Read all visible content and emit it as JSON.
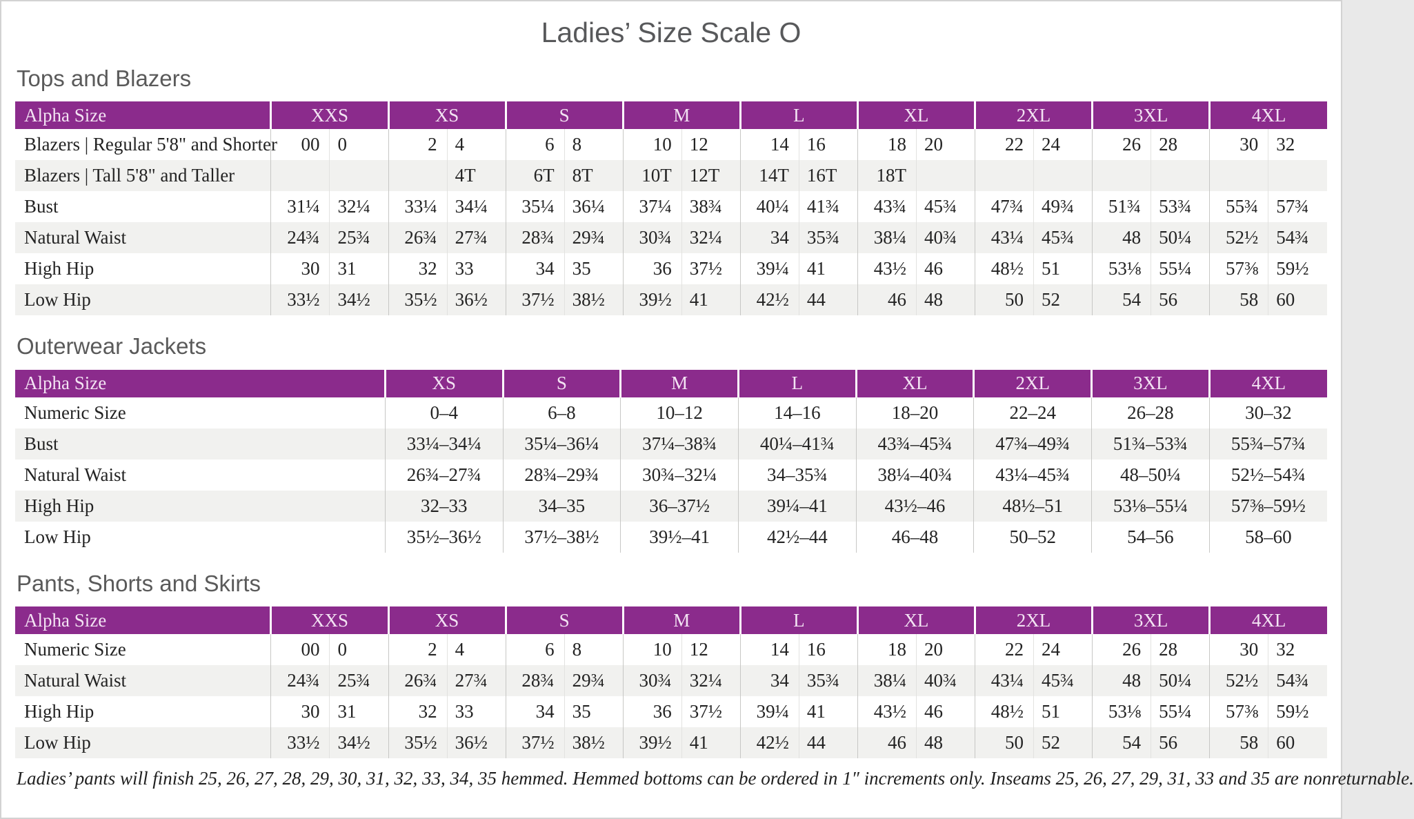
{
  "page": {
    "title": "Ladies’ Size Scale O",
    "footnote": "Ladies’ pants will finish 25, 26, 27, 28, 29, 30, 31, 32, 33, 34, 35 hemmed. Hemmed bottoms can be ordered in 1″ increments only. Inseams 25, 26, 27, 29, 31, 33 and 35 are nonreturnable."
  },
  "colors": {
    "header_purple": "#8B2B8C",
    "header_text": "#F3E3F3",
    "stripe_gray": "#F1F1EF",
    "heading_gray": "#5A5A5A",
    "body_text": "#232323"
  },
  "tables": [
    {
      "section": "Tops and Blazers",
      "label_header": "Alpha Size",
      "split_columns": true,
      "columns": [
        "XXS",
        "XS",
        "S",
        "M",
        "L",
        "XL",
        "2XL",
        "3XL",
        "4XL"
      ],
      "rows": [
        {
          "label": "Blazers  |  Regular 5'8\" and Shorter",
          "values": [
            [
              "00",
              "0"
            ],
            [
              "2",
              "4"
            ],
            [
              "6",
              "8"
            ],
            [
              "10",
              "12"
            ],
            [
              "14",
              "16"
            ],
            [
              "18",
              "20"
            ],
            [
              "22",
              "24"
            ],
            [
              "26",
              "28"
            ],
            [
              "30",
              "32"
            ]
          ]
        },
        {
          "label": "Blazers  |  Tall 5'8\" and Taller",
          "values": [
            [
              "",
              ""
            ],
            [
              "",
              "4T"
            ],
            [
              "6T",
              "8T"
            ],
            [
              "10T",
              "12T"
            ],
            [
              "14T",
              "16T"
            ],
            [
              "18T",
              ""
            ],
            [
              "",
              ""
            ],
            [
              "",
              ""
            ],
            [
              "",
              ""
            ]
          ]
        },
        {
          "label": "Bust",
          "values": [
            [
              "31¼",
              "32¼"
            ],
            [
              "33¼",
              "34¼"
            ],
            [
              "35¼",
              "36¼"
            ],
            [
              "37¼",
              "38¾"
            ],
            [
              "40¼",
              "41¾"
            ],
            [
              "43¾",
              "45¾"
            ],
            [
              "47¾",
              "49¾"
            ],
            [
              "51¾",
              "53¾"
            ],
            [
              "55¾",
              "57¾"
            ]
          ]
        },
        {
          "label": "Natural Waist",
          "values": [
            [
              "24¾",
              "25¾"
            ],
            [
              "26¾",
              "27¾"
            ],
            [
              "28¾",
              "29¾"
            ],
            [
              "30¾",
              "32¼"
            ],
            [
              "34",
              "35¾"
            ],
            [
              "38¼",
              "40¾"
            ],
            [
              "43¼",
              "45¾"
            ],
            [
              "48",
              "50¼"
            ],
            [
              "52½",
              "54¾"
            ]
          ]
        },
        {
          "label": "High Hip",
          "values": [
            [
              "30",
              "31"
            ],
            [
              "32",
              "33"
            ],
            [
              "34",
              "35"
            ],
            [
              "36",
              "37½"
            ],
            [
              "39¼",
              "41"
            ],
            [
              "43½",
              "46"
            ],
            [
              "48½",
              "51"
            ],
            [
              "53⅛",
              "55¼"
            ],
            [
              "57⅜",
              "59½"
            ]
          ]
        },
        {
          "label": "Low Hip",
          "values": [
            [
              "33½",
              "34½"
            ],
            [
              "35½",
              "36½"
            ],
            [
              "37½",
              "38½"
            ],
            [
              "39½",
              "41"
            ],
            [
              "42½",
              "44"
            ],
            [
              "46",
              "48"
            ],
            [
              "50",
              "52"
            ],
            [
              "54",
              "56"
            ],
            [
              "58",
              "60"
            ]
          ]
        }
      ]
    },
    {
      "section": "Outerwear Jackets",
      "label_header": "Alpha Size",
      "split_columns": false,
      "columns": [
        "XS",
        "S",
        "M",
        "L",
        "XL",
        "2XL",
        "3XL",
        "4XL"
      ],
      "rows": [
        {
          "label": "Numeric Size",
          "values": [
            "0–4",
            "6–8",
            "10–12",
            "14–16",
            "18–20",
            "22–24",
            "26–28",
            "30–32"
          ]
        },
        {
          "label": "Bust",
          "values": [
            "33¼–34¼",
            "35¼–36¼",
            "37¼–38¾",
            "40¼–41¾",
            "43¾–45¾",
            "47¾–49¾",
            "51¾–53¾",
            "55¾–57¾"
          ]
        },
        {
          "label": "Natural Waist",
          "values": [
            "26¾–27¾",
            "28¾–29¾",
            "30¾–32¼",
            "34–35¾",
            "38¼–40¾",
            "43¼–45¾",
            "48–50¼",
            "52½–54¾"
          ]
        },
        {
          "label": "High Hip",
          "values": [
            "32–33",
            "34–35",
            "36–37½",
            "39¼–41",
            "43½–46",
            "48½–51",
            "53⅛–55¼",
            "57⅜–59½"
          ]
        },
        {
          "label": "Low Hip",
          "values": [
            "35½–36½",
            "37½–38½",
            "39½–41",
            "42½–44",
            "46–48",
            "50–52",
            "54–56",
            "58–60"
          ]
        }
      ]
    },
    {
      "section": "Pants, Shorts and Skirts",
      "label_header": "Alpha Size",
      "split_columns": true,
      "columns": [
        "XXS",
        "XS",
        "S",
        "M",
        "L",
        "XL",
        "2XL",
        "3XL",
        "4XL"
      ],
      "rows": [
        {
          "label": "Numeric Size",
          "values": [
            [
              "00",
              "0"
            ],
            [
              "2",
              "4"
            ],
            [
              "6",
              "8"
            ],
            [
              "10",
              "12"
            ],
            [
              "14",
              "16"
            ],
            [
              "18",
              "20"
            ],
            [
              "22",
              "24"
            ],
            [
              "26",
              "28"
            ],
            [
              "30",
              "32"
            ]
          ]
        },
        {
          "label": "Natural Waist",
          "values": [
            [
              "24¾",
              "25¾"
            ],
            [
              "26¾",
              "27¾"
            ],
            [
              "28¾",
              "29¾"
            ],
            [
              "30¾",
              "32¼"
            ],
            [
              "34",
              "35¾"
            ],
            [
              "38¼",
              "40¾"
            ],
            [
              "43¼",
              "45¾"
            ],
            [
              "48",
              "50¼"
            ],
            [
              "52½",
              "54¾"
            ]
          ]
        },
        {
          "label": "High Hip",
          "values": [
            [
              "30",
              "31"
            ],
            [
              "32",
              "33"
            ],
            [
              "34",
              "35"
            ],
            [
              "36",
              "37½"
            ],
            [
              "39¼",
              "41"
            ],
            [
              "43½",
              "46"
            ],
            [
              "48½",
              "51"
            ],
            [
              "53⅛",
              "55¼"
            ],
            [
              "57⅜",
              "59½"
            ]
          ]
        },
        {
          "label": "Low Hip",
          "values": [
            [
              "33½",
              "34½"
            ],
            [
              "35½",
              "36½"
            ],
            [
              "37½",
              "38½"
            ],
            [
              "39½",
              "41"
            ],
            [
              "42½",
              "44"
            ],
            [
              "46",
              "48"
            ],
            [
              "50",
              "52"
            ],
            [
              "54",
              "56"
            ],
            [
              "58",
              "60"
            ]
          ]
        }
      ]
    }
  ],
  "layout_hints": {
    "split_label_col_pct": 19.5,
    "range_label_col_pct": 28.2
  }
}
